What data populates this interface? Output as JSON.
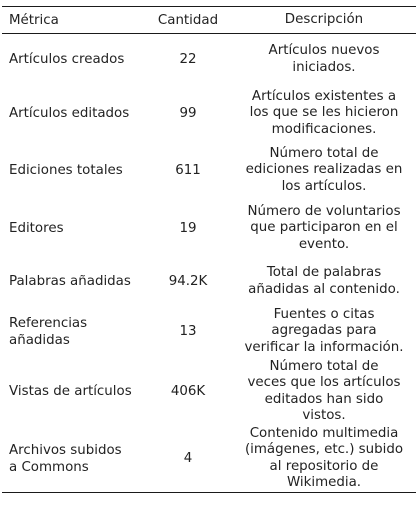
{
  "table": {
    "headers": {
      "metric": "Métrica",
      "quantity": "Cantidad",
      "description": "Descripción"
    },
    "rows": [
      {
        "metric": [
          "Artículos creados"
        ],
        "quantity": "22",
        "description": [
          "Artículos nuevos",
          "iniciados."
        ]
      },
      {
        "metric": [
          "Artículos editados"
        ],
        "quantity": "99",
        "description": [
          "Artículos existentes a",
          "los que se les hicieron",
          "modificaciones."
        ]
      },
      {
        "metric": [
          "Ediciones totales"
        ],
        "quantity": "611",
        "description": [
          "Número total de",
          "ediciones realizadas en",
          "los artículos."
        ]
      },
      {
        "metric": [
          "Editores"
        ],
        "quantity": "19",
        "description": [
          "Número de voluntarios",
          "que participaron en el",
          "evento."
        ]
      },
      {
        "metric": [
          "Palabras añadidas"
        ],
        "quantity": "94.2K",
        "description": [
          "Total de palabras",
          "añadidas al contenido."
        ]
      },
      {
        "metric": [
          "Referencias",
          "añadidas"
        ],
        "quantity": "13",
        "description": [
          "Fuentes o citas",
          "agregadas para",
          "verificar la información."
        ]
      },
      {
        "metric": [
          "Vistas de artículos"
        ],
        "quantity": "406K",
        "description": [
          "Número total de",
          "veces que los artículos",
          "editados han sido",
          "vistos."
        ]
      },
      {
        "metric": [
          "Archivos subidos",
          "a Commons"
        ],
        "quantity": "4",
        "description": [
          "Contenido multimedia",
          "(imágenes, etc.) subido",
          "al repositorio de",
          "Wikimedia."
        ]
      }
    ]
  }
}
